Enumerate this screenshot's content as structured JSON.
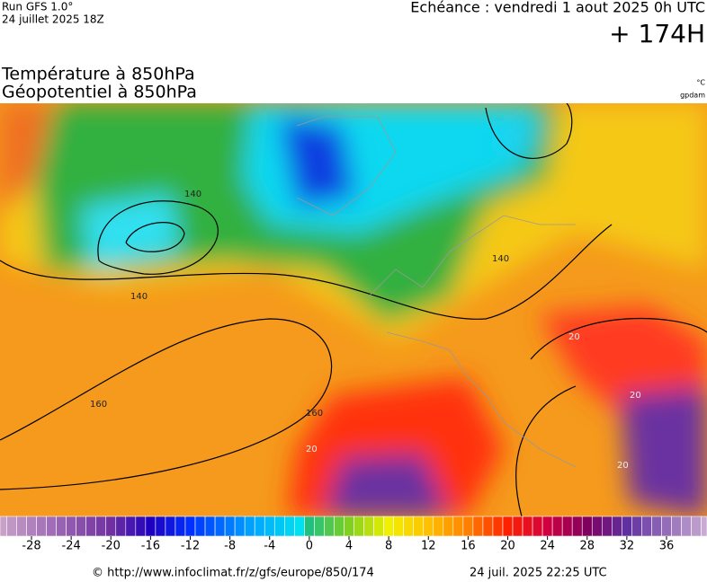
{
  "header": {
    "run": "Run GFS 1.0°",
    "run_date": "24 juillet 2025 18Z",
    "valid": "Echéance : vendredi 1 aout 2025 0h UTC",
    "lead": "+ 174H"
  },
  "titles": {
    "line1": "Température à 850hPa",
    "line2": "Géopotentiel à 850hPa",
    "unit1": "°C",
    "unit2": "gpdam"
  },
  "contour_labels": [
    "140",
    "140",
    "140",
    "160",
    "160",
    "20",
    "20",
    "20",
    "20"
  ],
  "colorbar": {
    "ticks": [
      -28,
      -24,
      -20,
      -16,
      -12,
      -8,
      -4,
      0,
      4,
      8,
      12,
      16,
      20,
      24,
      28,
      32,
      36
    ]
  },
  "footer": {
    "source": "© http://www.infoclimat.fr/z/gfs/europe/850/174",
    "generated": "24 juil. 2025 22:25 UTC"
  }
}
